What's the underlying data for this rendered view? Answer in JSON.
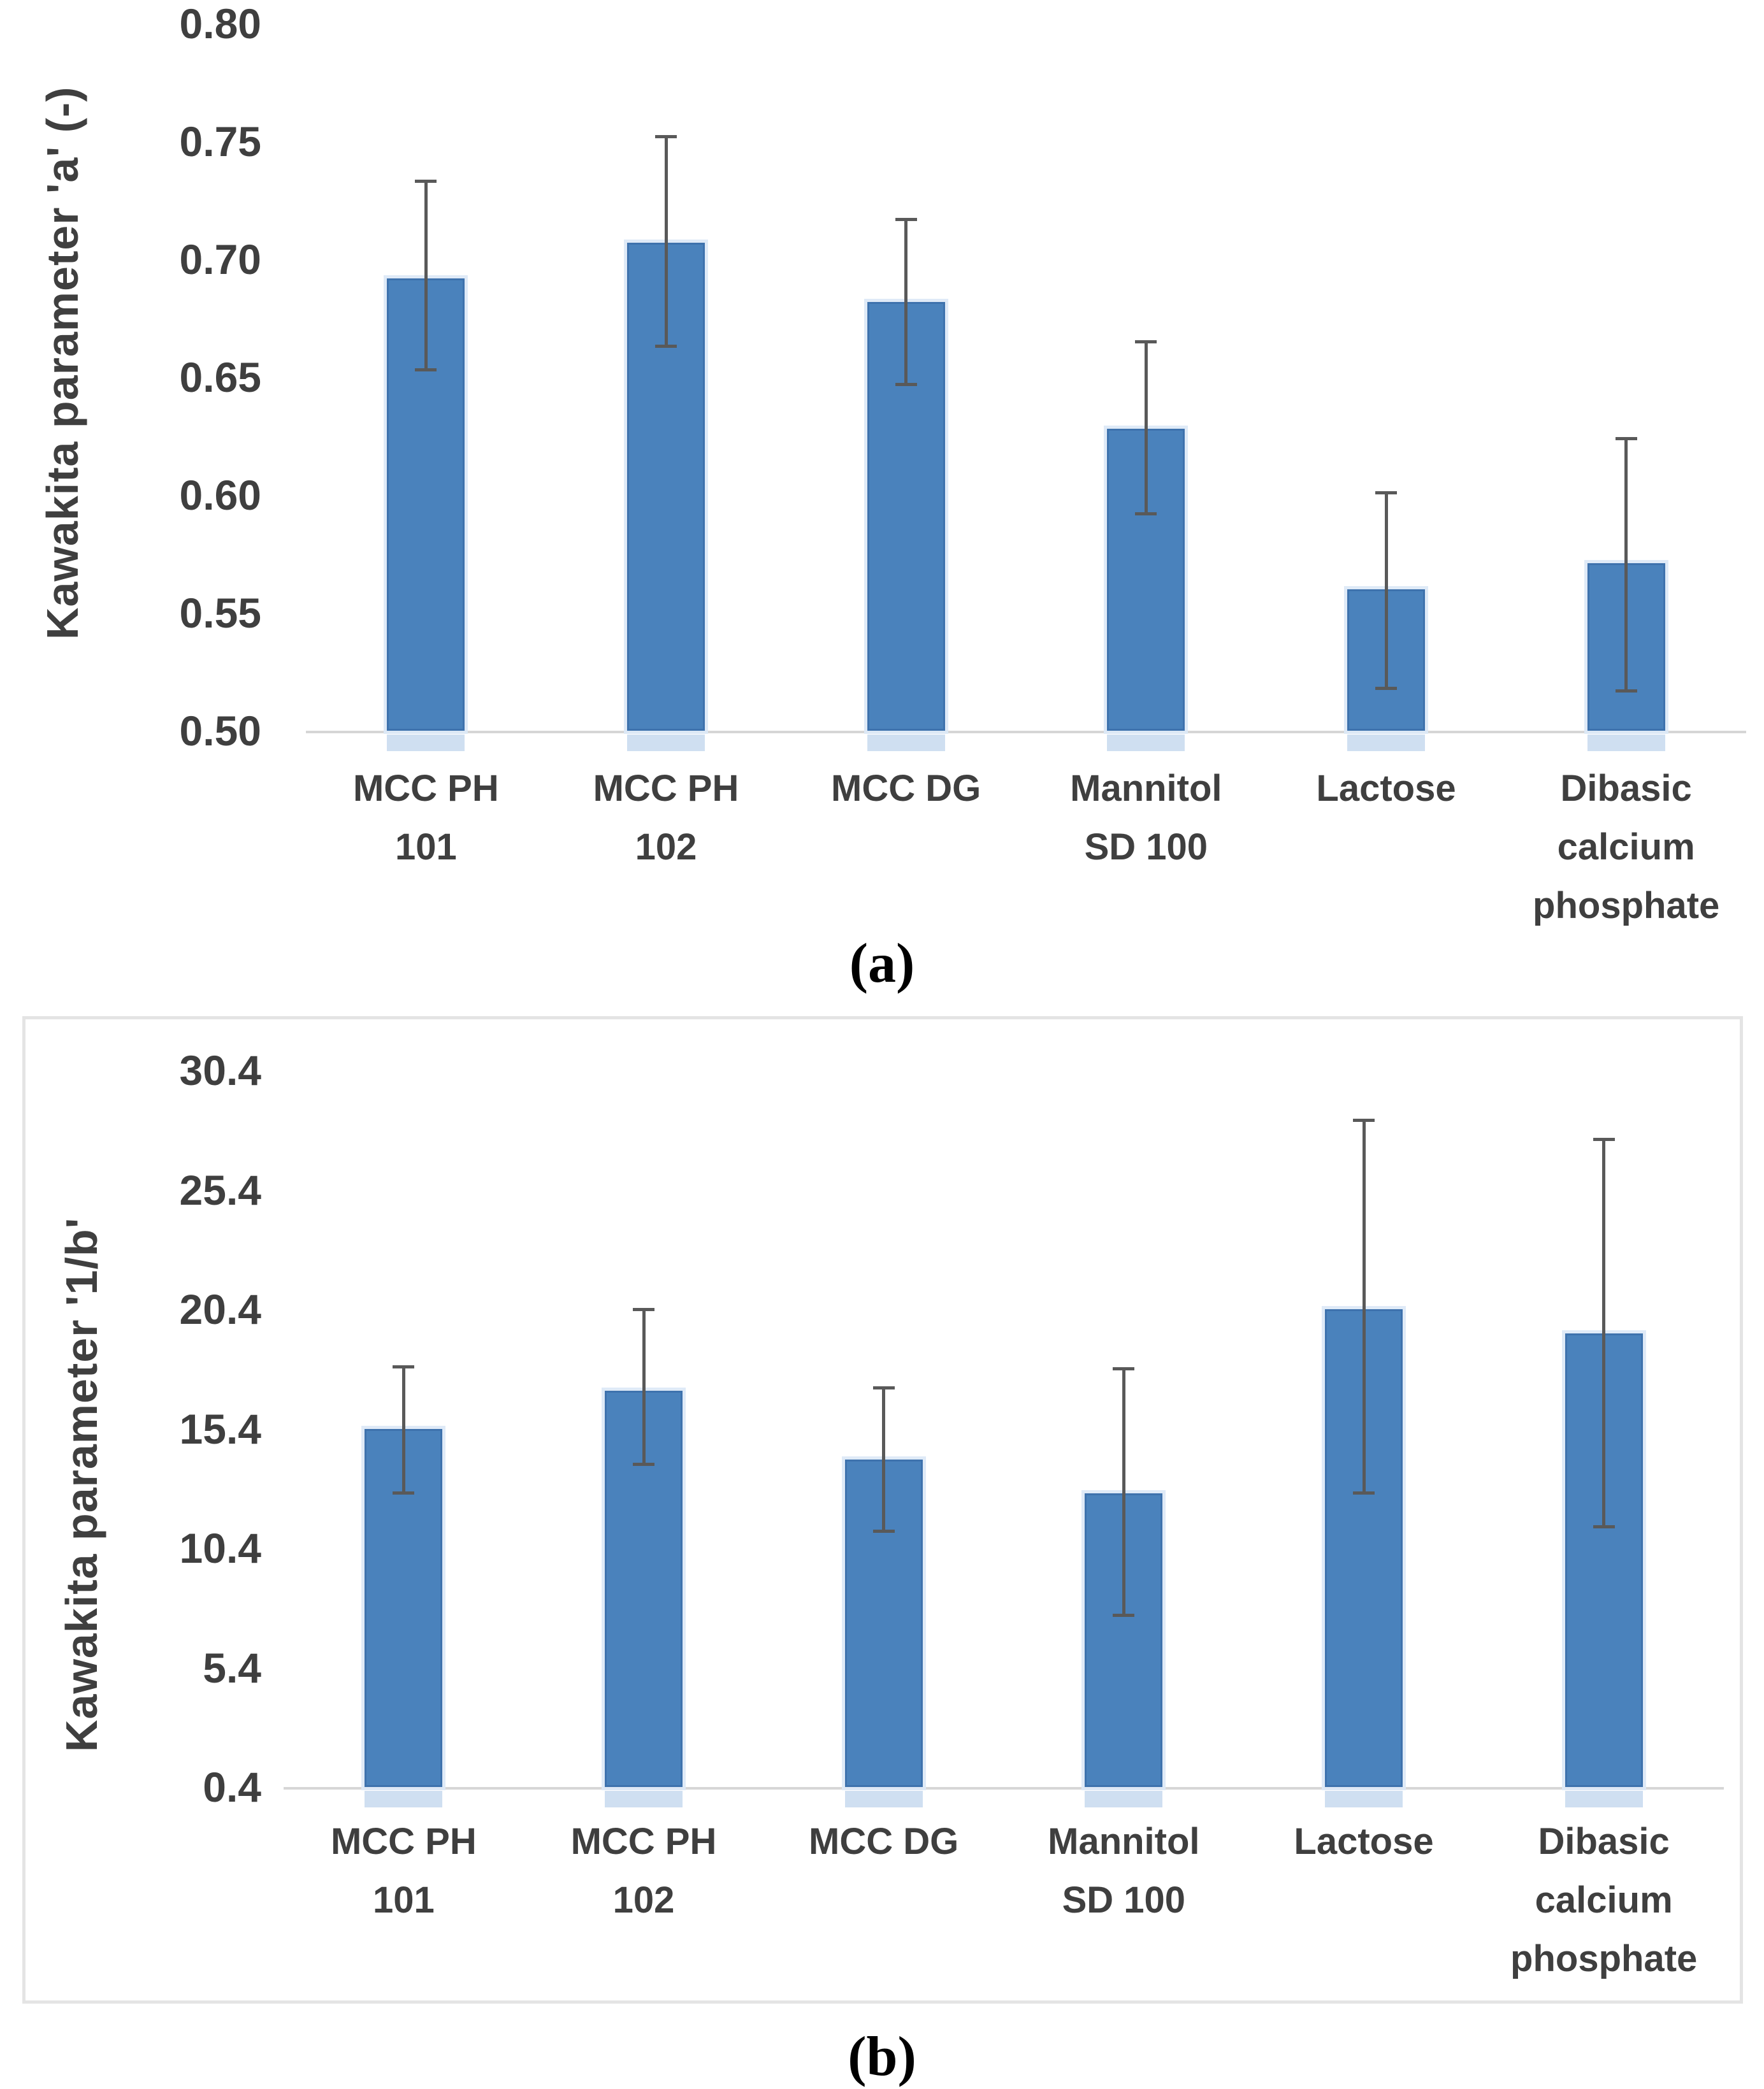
{
  "figure": {
    "panel_a_label": "(a)",
    "panel_b_label": "(b)"
  },
  "colors": {
    "bar_fill": "#4a82bc",
    "bar_edge": "#3e72ad",
    "bar_glow": "#dde9f7",
    "bar_reflection": "#c7d9ef",
    "error_bar": "#595959",
    "axis_line": "#d6d6d6",
    "text": "#3f3f3f",
    "panel_border": "#e4e4e4"
  },
  "chart_data": [
    {
      "type": "bar",
      "panel": "a",
      "title": "",
      "xlabel": "",
      "ylabel": "Kawakita parameter 'a' (-)",
      "categories": [
        "MCC PH\n101",
        "MCC PH\n102",
        "MCC DG",
        "Mannitol\nSD 100",
        "Lactose",
        "Dibasic\ncalcium\nphosphate"
      ],
      "values": [
        0.692,
        0.707,
        0.682,
        0.628,
        0.56,
        0.571
      ],
      "error_low": [
        0.653,
        0.663,
        0.647,
        0.592,
        0.518,
        0.517
      ],
      "error_high": [
        0.733,
        0.752,
        0.717,
        0.665,
        0.601,
        0.624
      ],
      "ylim": [
        0.5,
        0.8
      ],
      "yticks": [
        0.8,
        0.75,
        0.7,
        0.65,
        0.6,
        0.55,
        0.5
      ],
      "ytick_labels": [
        "0.80",
        "0.75",
        "0.70",
        "0.65",
        "0.60",
        "0.55",
        "0.50"
      ],
      "grid": false,
      "legend": null
    },
    {
      "type": "bar",
      "panel": "b",
      "title": "",
      "xlabel": "",
      "ylabel": "Kawakita parameter '1/b'",
      "categories": [
        "MCC PH\n101",
        "MCC PH\n102",
        "MCC DG",
        "Mannitol\nSD 100",
        "Lactose",
        "Dibasic\ncalcium\nphosphate"
      ],
      "values": [
        15.4,
        17.0,
        14.1,
        12.7,
        20.4,
        19.4
      ],
      "error_low": [
        12.7,
        13.9,
        11.1,
        7.6,
        12.7,
        11.3
      ],
      "error_high": [
        18.0,
        20.4,
        17.1,
        17.9,
        28.3,
        27.5
      ],
      "ylim": [
        0.4,
        30.4
      ],
      "yticks": [
        30.4,
        25.4,
        20.4,
        15.4,
        10.4,
        5.4,
        0.4
      ],
      "ytick_labels": [
        "30.4",
        "25.4",
        "20.4",
        "15.4",
        "10.4",
        "5.4",
        "0.4"
      ],
      "grid": false,
      "legend": null
    }
  ]
}
